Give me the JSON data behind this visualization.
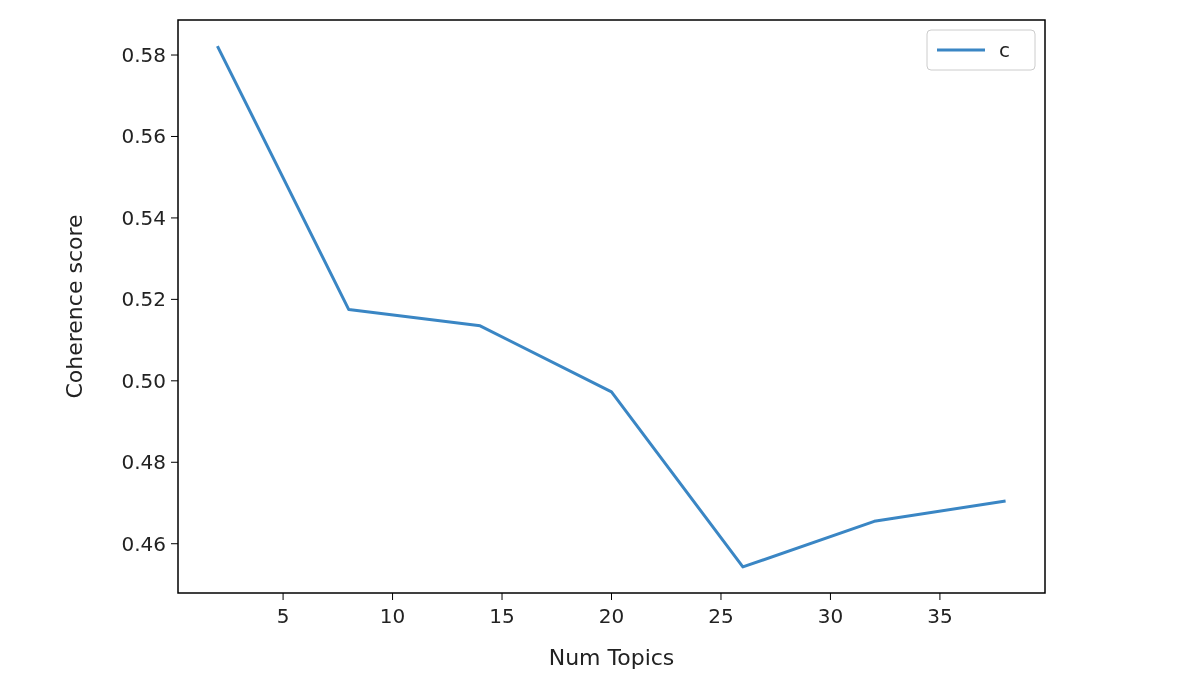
{
  "chart_data": {
    "type": "line",
    "xlabel": "Num Topics",
    "ylabel": "Coherence score",
    "x": [
      2,
      8,
      14,
      20,
      26,
      32,
      38
    ],
    "series": [
      {
        "name": "c",
        "color": "#3a86c4",
        "values": [
          0.5822,
          0.5175,
          0.5135,
          0.4973,
          0.4543,
          0.4655,
          0.4705
        ]
      }
    ],
    "xlim": [
      0.2,
      39.8
    ],
    "xticks": [
      5,
      10,
      15,
      20,
      25,
      30,
      35
    ],
    "ylim": [
      0.4479,
      0.5886
    ],
    "yticks": [
      {
        "value": 0.46,
        "label": "0.46"
      },
      {
        "value": 0.48,
        "label": "0.48"
      },
      {
        "value": 0.5,
        "label": "0.50"
      },
      {
        "value": 0.52,
        "label": "0.52"
      },
      {
        "value": 0.54,
        "label": "0.54"
      },
      {
        "value": 0.56,
        "label": "0.56"
      },
      {
        "value": 0.58,
        "label": "0.58"
      }
    ],
    "legend": "top right",
    "grid": false,
    "marker": "none",
    "line_style": "solid"
  }
}
